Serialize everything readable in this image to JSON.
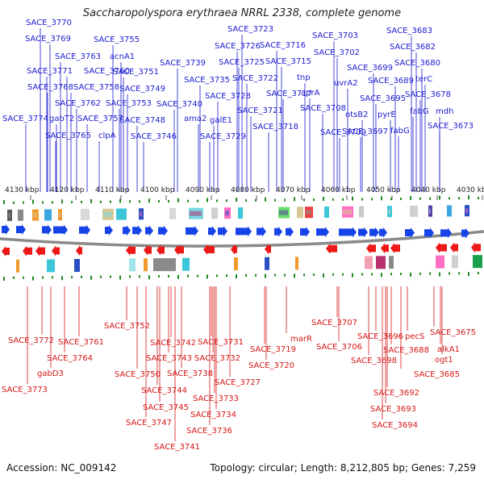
{
  "title": "Saccharopolyspora erythraea NRRL 2338, complete genome",
  "footer": {
    "accession": "Accession: NC_009142",
    "topology": "Topology: circular; Length: 8,212,805 bp; Genes: 7,259"
  },
  "colors": {
    "forward_label": "#1b1bd0",
    "reverse_label": "#d41616",
    "forward_arrow": "#1744e8",
    "reverse_arrow": "#ee1818",
    "tick": "#1f8a1f",
    "backbone": "#8a8a8a"
  },
  "ruler": {
    "unit": "kbp",
    "ticks": [
      4130,
      4120,
      4110,
      4100,
      4090,
      4080,
      4070,
      4060,
      4050,
      4040,
      4030
    ]
  },
  "forward_genes": [
    "SACE_3770",
    "SACE_3769",
    "SACE_3763",
    "SACE_3771",
    "SACE_3760",
    "SACE_3768",
    "SACE_3758",
    "SACE_3762",
    "SACE_3774",
    "gabT2",
    "SACE_3757",
    "SACE_3765",
    "clpA",
    "SACE_3755",
    "acnA1",
    "SACE_3751",
    "SACE_3749",
    "SACE_3753",
    "SACE_3748",
    "SACE_3746",
    "SACE_3739",
    "SACE_3735",
    "SACE_3740",
    "ama2",
    "SACE_3728",
    "galE1",
    "SACE_3729",
    "SACE_3723",
    "SACE_3726",
    "SACE_3725",
    "SACE_3722",
    "SACE_3721",
    "SACE_3716",
    "SACE_3715",
    "SACE_3717",
    "SACE_3718",
    "SACE_3703",
    "SACE_3702",
    "tnp",
    "aprA",
    "SACE_3708",
    "SACE_3709",
    "uvrA2",
    "SACE_3699",
    "otsB2",
    "SACE_3697",
    "SACE_3695",
    "SACE_3689",
    "pyrE",
    "fabG",
    "SACE_3683",
    "SACE_3682",
    "SACE_3680",
    "terC",
    "SACE_3678",
    "fabG",
    "mdh",
    "SACE_3673"
  ],
  "reverse_genes": [
    "SACE_3772",
    "SACE_3773",
    "gabD3",
    "SACE_3764",
    "SACE_3761",
    "SACE_3752",
    "SACE_3750",
    "SACE_3747",
    "SACE_3744",
    "SACE_3745",
    "SACE_3742",
    "SACE_3743",
    "SACE_3741",
    "SACE_3738",
    "SACE_3731",
    "SACE_3732",
    "SACE_3733",
    "SACE_3734",
    "SACE_3736",
    "SACE_3727",
    "SACE_3719",
    "SACE_3720",
    "marR",
    "SACE_3707",
    "SACE_3706",
    "SACE_3696",
    "SACE_3698",
    "SACE_3688",
    "SACE_3692",
    "SACE_3693",
    "SACE_3694",
    "pecS",
    "SACE_3685",
    "SACE_3675",
    "alkA1",
    "ogt1"
  ]
}
